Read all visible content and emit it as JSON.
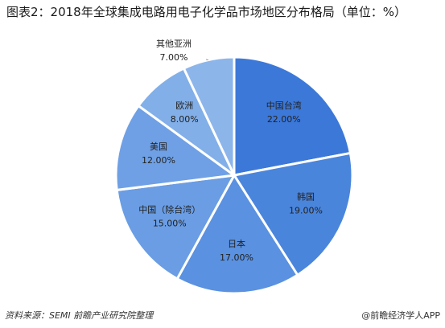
{
  "title": "图表2：2018年全球集成电路用电子化学品市场地区分布格局（单位：%）",
  "source": "资料来源：SEMI 前瞻产业研究院整理",
  "credit": "@前瞻经济学人APP",
  "colors": {
    "slice_light": "#7ba7e4",
    "slice_mid": "#4e89dd",
    "slice_dark": "#3c78d8",
    "label_dark": "#222222",
    "label_light": "#ffffff"
  },
  "chart_data": {
    "type": "pie",
    "start_angle_deg": 0,
    "direction": "clockwise",
    "categories": [
      "中国台湾",
      "韩国",
      "日本",
      "中国（除台湾）",
      "美国",
      "欧洲",
      "其他亚洲"
    ],
    "values": [
      22.0,
      19.0,
      17.0,
      15.0,
      12.0,
      8.0,
      7.0
    ],
    "value_labels": [
      "22.00%",
      "19.00%",
      "17.00%",
      "15.00%",
      "12.00%",
      "8.00%",
      "7.00%"
    ],
    "slice_colors": [
      "#3c78d8",
      "#4a85dc",
      "#5a91e0",
      "#6a9de3",
      "#6fa0e5",
      "#82afe8",
      "#8cb5ea"
    ],
    "label_colors": [
      "#222222",
      "#222222",
      "#222222",
      "#222222",
      "#222222",
      "#222222",
      "#222222"
    ],
    "outside_label_index": 6
  }
}
